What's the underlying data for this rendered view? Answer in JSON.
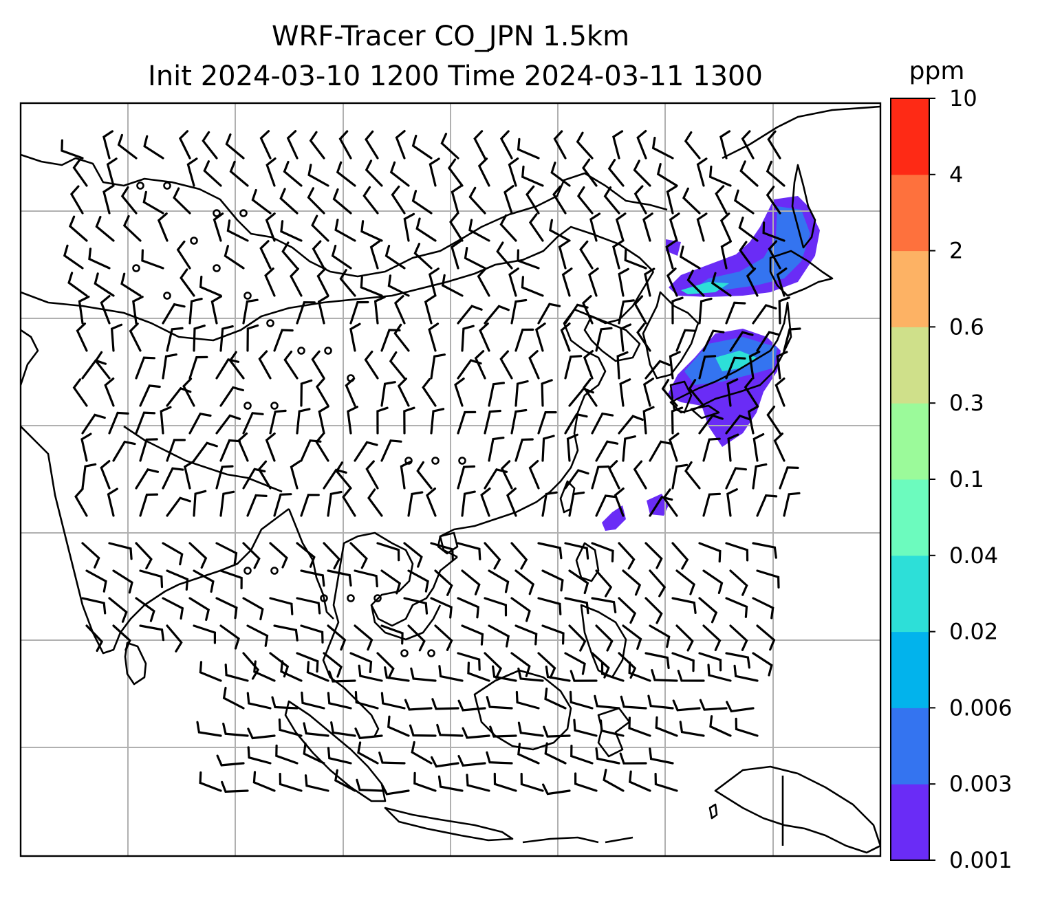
{
  "figure": {
    "title_line1": "WRF-Tracer CO_JPN 1.5km",
    "title_line2": "Init 2024-03-10 1200 Time 2024-03-11 1300"
  },
  "colorbar": {
    "unit": "ppm",
    "levels": [
      "0.001",
      "0.003",
      "0.006",
      "0.02",
      "0.04",
      "0.1",
      "0.3",
      "0.6",
      "2",
      "4",
      "10"
    ],
    "colors": [
      "#6a2cf6",
      "#3474f0",
      "#02b3ec",
      "#2ddfd8",
      "#6cfbbe",
      "#9bfa9a",
      "#cfe08a",
      "#fdb264",
      "#fe713d",
      "#fe2a15"
    ]
  },
  "map": {
    "field": "CO tracer concentration",
    "plume_colors": {
      "low": "#6a2cf6",
      "mid": "#3474f0",
      "high": "#2ddfd8"
    },
    "wind_barbs": "wind barbs plotted over map; circles indicate calm"
  }
}
